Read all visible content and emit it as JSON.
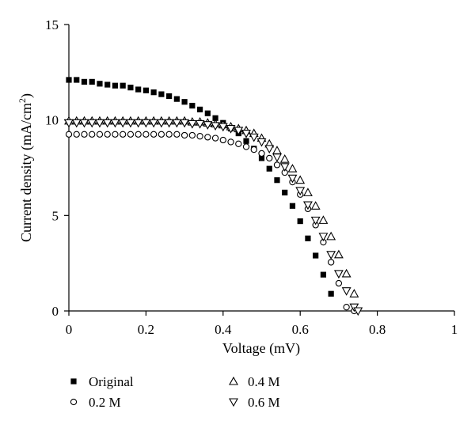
{
  "chart_data": {
    "type": "scatter",
    "xlabel": "Voltage (mV)",
    "ylabel_main": "Current density (mA/cm",
    "ylabel_sup": "2",
    "ylabel_tail": ")",
    "xlim": [
      0,
      1
    ],
    "ylim": [
      0,
      15
    ],
    "xticks": [
      0,
      0.2,
      0.4,
      0.6,
      0.8,
      1
    ],
    "xtick_labels": [
      "0",
      "0.2",
      "0.4",
      "0.6",
      "0.8",
      "1"
    ],
    "yticks": [
      0,
      5,
      10,
      15
    ],
    "ytick_labels": [
      "0",
      "5",
      "10",
      "15"
    ],
    "grid": false,
    "legend_position": "bottom",
    "series": [
      {
        "name": "Original",
        "marker": "filled-square",
        "x": [
          0.0,
          0.02,
          0.04,
          0.06,
          0.08,
          0.1,
          0.12,
          0.14,
          0.16,
          0.18,
          0.2,
          0.22,
          0.24,
          0.26,
          0.28,
          0.3,
          0.32,
          0.34,
          0.36,
          0.38,
          0.4,
          0.42,
          0.44,
          0.46,
          0.48,
          0.5,
          0.52,
          0.54,
          0.56,
          0.58,
          0.6,
          0.62,
          0.64,
          0.66,
          0.68
        ],
        "y": [
          12.1,
          12.1,
          12.0,
          12.0,
          11.9,
          11.85,
          11.8,
          11.8,
          11.7,
          11.6,
          11.55,
          11.45,
          11.35,
          11.25,
          11.1,
          10.95,
          10.75,
          10.55,
          10.35,
          10.1,
          9.85,
          9.55,
          9.3,
          8.9,
          8.5,
          8.0,
          7.45,
          6.85,
          6.2,
          5.5,
          4.7,
          3.8,
          2.9,
          1.9,
          0.9
        ]
      },
      {
        "name": "0.2 M",
        "marker": "open-circle",
        "x": [
          0.0,
          0.02,
          0.04,
          0.06,
          0.08,
          0.1,
          0.12,
          0.14,
          0.16,
          0.18,
          0.2,
          0.22,
          0.24,
          0.26,
          0.28,
          0.3,
          0.32,
          0.34,
          0.36,
          0.38,
          0.4,
          0.42,
          0.44,
          0.46,
          0.48,
          0.5,
          0.52,
          0.54,
          0.56,
          0.58,
          0.6,
          0.62,
          0.64,
          0.66,
          0.68,
          0.7,
          0.72,
          0.74
        ],
        "y": [
          9.25,
          9.25,
          9.25,
          9.25,
          9.25,
          9.25,
          9.25,
          9.25,
          9.25,
          9.25,
          9.25,
          9.25,
          9.25,
          9.25,
          9.25,
          9.2,
          9.2,
          9.15,
          9.1,
          9.05,
          8.95,
          8.85,
          8.75,
          8.6,
          8.45,
          8.25,
          8.0,
          7.65,
          7.25,
          6.75,
          6.1,
          5.35,
          4.5,
          3.6,
          2.55,
          1.45,
          0.2,
          0.0
        ]
      },
      {
        "name": "0.4 M",
        "marker": "open-triangle-up",
        "x": [
          0.0,
          0.02,
          0.04,
          0.06,
          0.08,
          0.1,
          0.12,
          0.14,
          0.16,
          0.18,
          0.2,
          0.22,
          0.24,
          0.26,
          0.28,
          0.3,
          0.32,
          0.34,
          0.36,
          0.38,
          0.4,
          0.42,
          0.44,
          0.46,
          0.48,
          0.5,
          0.52,
          0.54,
          0.56,
          0.58,
          0.6,
          0.62,
          0.64,
          0.66,
          0.68,
          0.7,
          0.72,
          0.74
        ],
        "y": [
          9.95,
          9.95,
          9.95,
          9.95,
          9.95,
          9.95,
          9.95,
          9.95,
          9.95,
          9.95,
          9.95,
          9.95,
          9.95,
          9.95,
          9.95,
          9.95,
          9.9,
          9.9,
          9.85,
          9.8,
          9.75,
          9.65,
          9.55,
          9.45,
          9.3,
          9.05,
          8.75,
          8.4,
          7.95,
          7.45,
          6.85,
          6.2,
          5.5,
          4.75,
          3.9,
          2.95,
          1.95,
          0.9
        ]
      },
      {
        "name": "0.6 M",
        "marker": "open-triangle-down",
        "x": [
          0.0,
          0.02,
          0.04,
          0.06,
          0.08,
          0.1,
          0.12,
          0.14,
          0.16,
          0.18,
          0.2,
          0.22,
          0.24,
          0.26,
          0.28,
          0.3,
          0.32,
          0.34,
          0.36,
          0.38,
          0.4,
          0.42,
          0.44,
          0.46,
          0.48,
          0.5,
          0.52,
          0.54,
          0.56,
          0.58,
          0.6,
          0.62,
          0.64,
          0.66,
          0.68,
          0.7,
          0.72,
          0.74,
          0.75
        ],
        "y": [
          9.85,
          9.85,
          9.85,
          9.85,
          9.85,
          9.85,
          9.85,
          9.85,
          9.85,
          9.85,
          9.85,
          9.85,
          9.85,
          9.85,
          9.85,
          9.85,
          9.8,
          9.8,
          9.75,
          9.7,
          9.65,
          9.55,
          9.45,
          9.3,
          9.1,
          8.85,
          8.5,
          8.05,
          7.55,
          6.95,
          6.3,
          5.55,
          4.75,
          3.9,
          2.95,
          1.95,
          1.05,
          0.2,
          0.0
        ]
      }
    ]
  }
}
